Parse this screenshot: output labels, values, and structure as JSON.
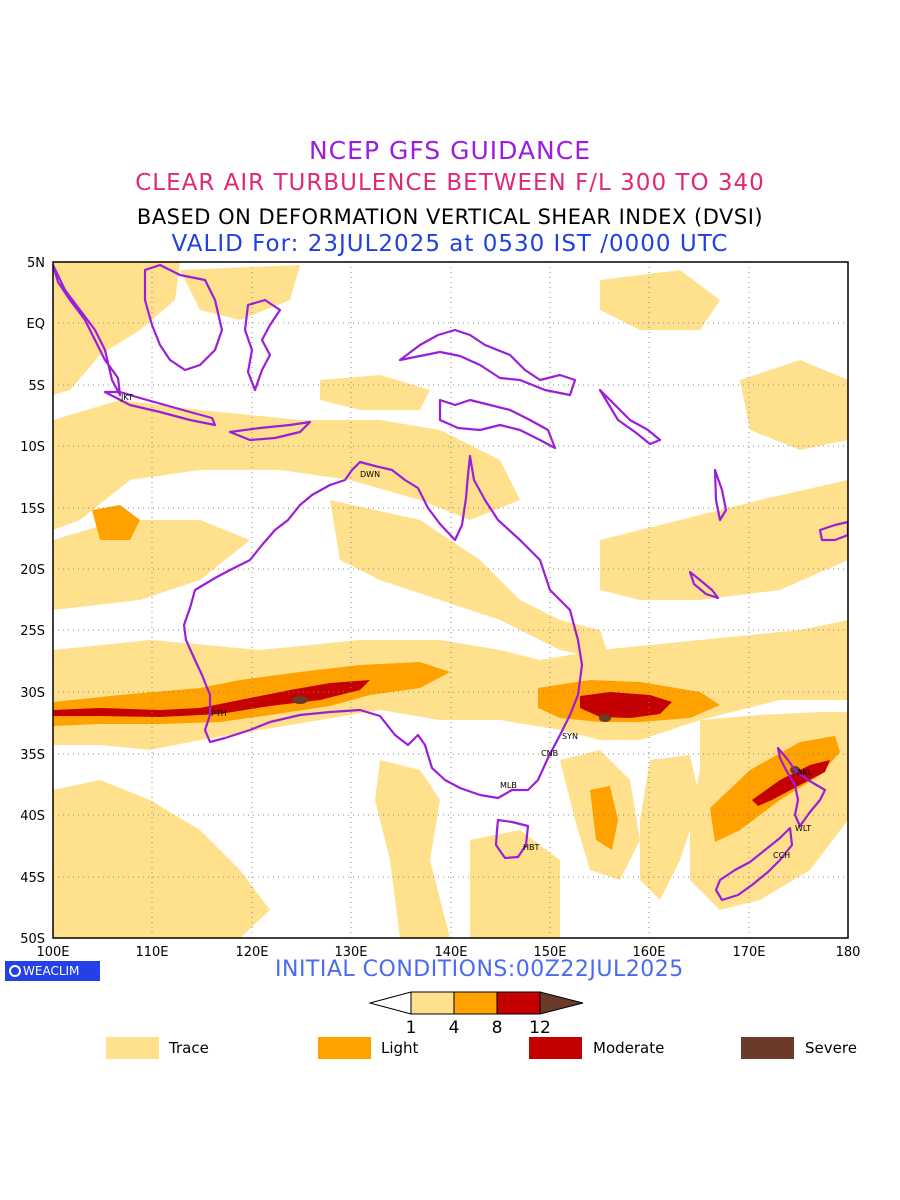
{
  "titles": {
    "line1": "NCEP GFS GUIDANCE",
    "line2": "CLEAR AIR TURBULENCE BETWEEN F/L 300 TO 340",
    "line3": "BASED ON DEFORMATION VERTICAL SHEAR INDEX (DVSI)",
    "line4": "VALID For: 23JUL2025 at 0530 IST /0000 UTC"
  },
  "colors": {
    "title1": "#9b1ee0",
    "title2": "#e0287a",
    "title3": "#000000",
    "title4": "#2040e0",
    "trace": "#ffe08c",
    "light": "#ffa200",
    "moderate": "#c40000",
    "severe": "#6b3a2a",
    "coastline": "#9b1ed8",
    "badge": "#2440e8"
  },
  "map": {
    "lat_labels": [
      "5N",
      "EQ",
      "5S",
      "10S",
      "15S",
      "20S",
      "25S",
      "30S",
      "35S",
      "40S",
      "45S",
      "50S"
    ],
    "lon_labels": [
      "100E",
      "110E",
      "120E",
      "130E",
      "140E",
      "150E",
      "160E",
      "170E",
      "180"
    ],
    "cities": [
      "JKT",
      "DWN",
      "PTH",
      "SYN",
      "CNB",
      "MLB",
      "HBT",
      "AKL",
      "WLT",
      "CCH"
    ]
  },
  "footer": {
    "badge": "WEACLIM",
    "initial_conditions": "INITIAL CONDITIONS:00Z22JUL2025"
  },
  "colorbar": {
    "ticks": [
      "1",
      "4",
      "8",
      "12"
    ]
  },
  "legend": {
    "items": [
      "Trace",
      "Light",
      "Moderate",
      "Severe"
    ]
  }
}
